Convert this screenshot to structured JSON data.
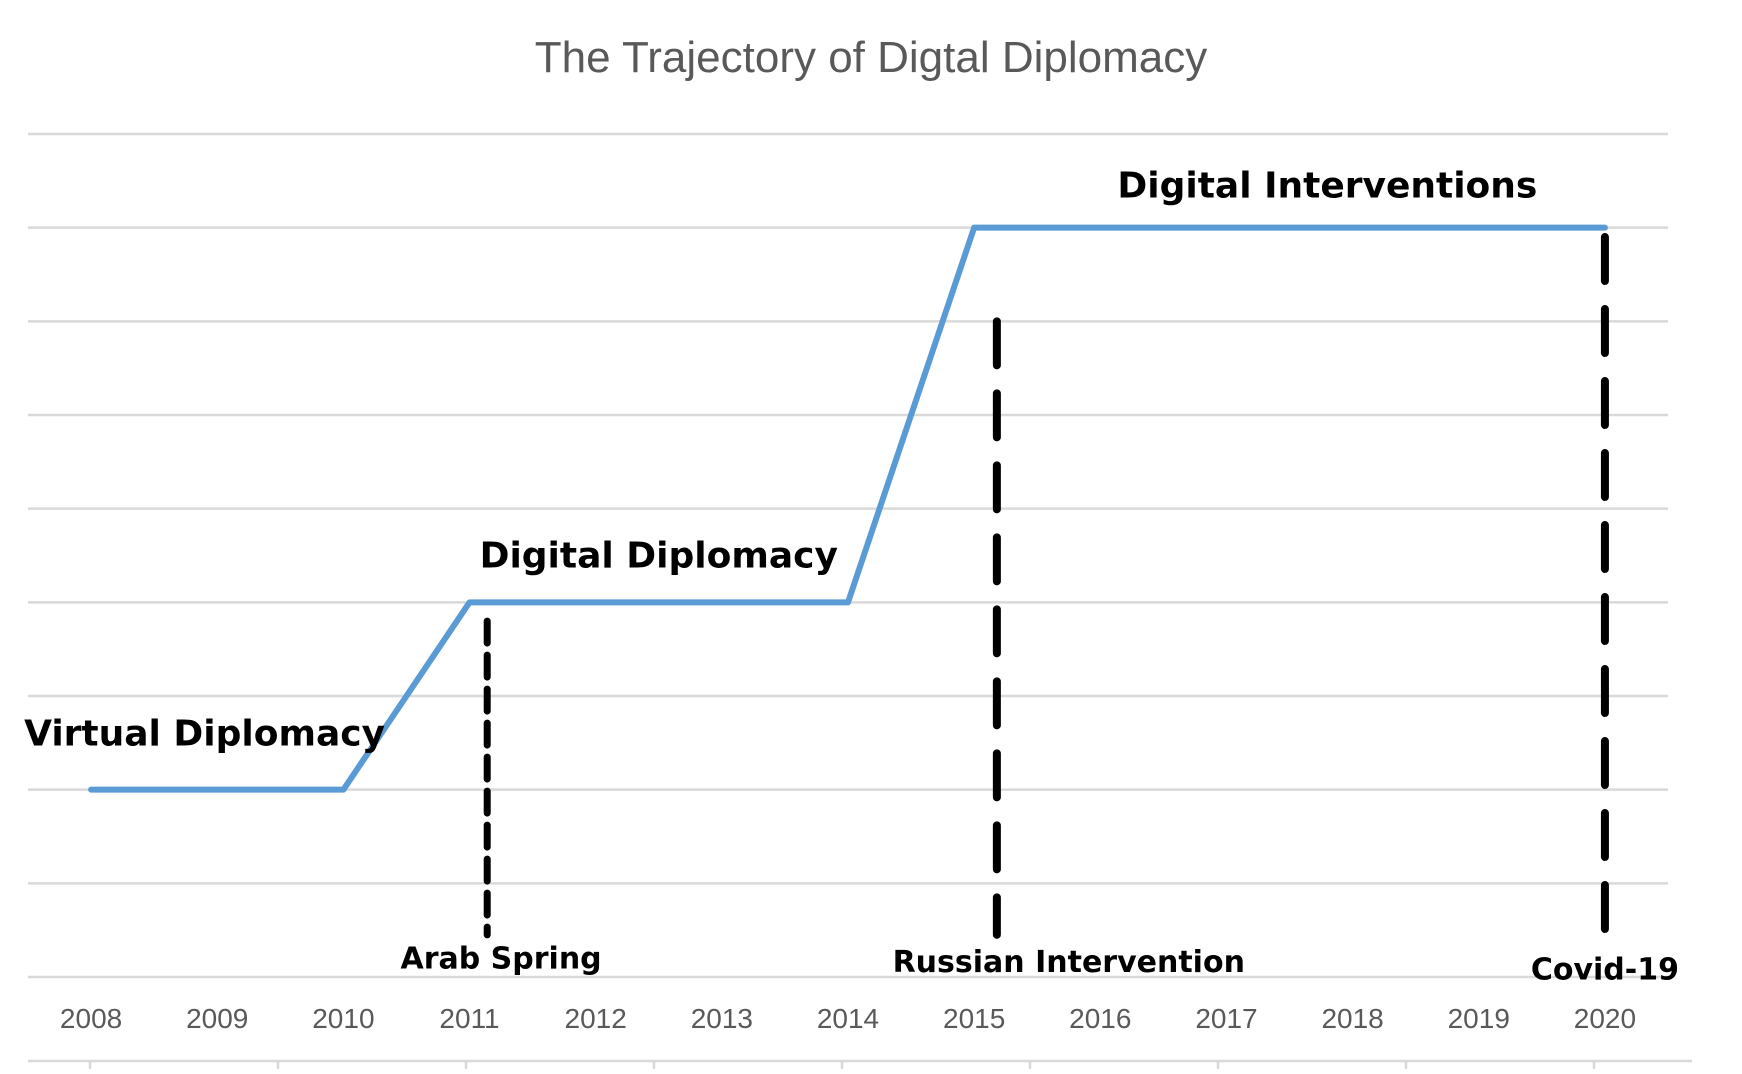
{
  "chart_data": {
    "type": "line",
    "title": "The Trajectory of Digtal Diplomacy",
    "xlabel": "",
    "ylabel": "",
    "categories": [
      "2008",
      "2009",
      "2010",
      "2011",
      "2012",
      "2013",
      "2014",
      "2015",
      "2016",
      "2017",
      "2018",
      "2019",
      "2020"
    ],
    "series": [
      {
        "color": "#5b9bd5",
        "points": [
          [
            2008,
            1
          ],
          [
            2010,
            1
          ],
          [
            2011,
            3
          ],
          [
            2014,
            3
          ],
          [
            2015,
            7
          ],
          [
            2020,
            7
          ]
        ]
      }
    ],
    "ylim": [
      -1,
      8
    ],
    "xlim": [
      2007.5,
      2020.5
    ],
    "grid": true,
    "legend": "none",
    "phase_labels": [
      {
        "text": "Virtual Diplomacy",
        "x": 2008.9,
        "y": 1.6
      },
      {
        "text": "Digital Diplomacy",
        "x": 2012.5,
        "y": 3.5
      },
      {
        "text": "Digital Interventions",
        "x": 2017.8,
        "y": 7.45
      }
    ],
    "events": [
      {
        "label": "Arab Spring",
        "x": 2011.14,
        "y_top": 2.8,
        "label_x": 2011.25
      },
      {
        "label": "Russian Intervention",
        "x": 2015.18,
        "y_top": 6.0,
        "label_x": 2015.75
      },
      {
        "label": "Covid-19",
        "x": 2020.0,
        "y_top": 6.9,
        "label_x": 2020.0
      }
    ],
    "colors": {
      "line": "#5b9bd5",
      "grid": "#d9d9d9",
      "events": "#000000",
      "text": "#595959"
    }
  }
}
